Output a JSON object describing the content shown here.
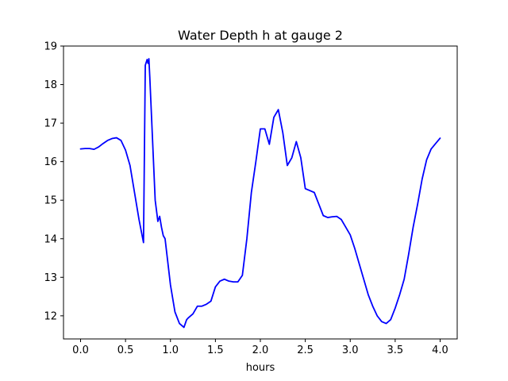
{
  "chart_data": {
    "type": "line",
    "title": "Water Depth h at gauge 2",
    "xlabel": "hours",
    "ylabel": "",
    "xlim": [
      -0.19,
      4.19
    ],
    "ylim": [
      11.4,
      19.0
    ],
    "xticks": [
      0.0,
      0.5,
      1.0,
      1.5,
      2.0,
      2.5,
      3.0,
      3.5,
      4.0
    ],
    "xtick_labels": [
      "0.0",
      "0.5",
      "1.0",
      "1.5",
      "2.0",
      "2.5",
      "3.0",
      "3.5",
      "4.0"
    ],
    "yticks": [
      12,
      13,
      14,
      15,
      16,
      17,
      18,
      19
    ],
    "ytick_labels": [
      "12",
      "13",
      "14",
      "15",
      "16",
      "17",
      "18",
      "19"
    ],
    "grid": false,
    "series": [
      {
        "color": "#0000ff",
        "x": [
          0.0,
          0.05,
          0.1,
          0.15,
          0.2,
          0.25,
          0.3,
          0.35,
          0.4,
          0.45,
          0.5,
          0.55,
          0.6,
          0.65,
          0.7,
          0.71,
          0.72,
          0.74,
          0.75,
          0.76,
          0.77,
          0.8,
          0.83,
          0.86,
          0.88,
          0.9,
          0.92,
          0.94,
          0.97,
          1.0,
          1.05,
          1.1,
          1.15,
          1.18,
          1.2,
          1.25,
          1.3,
          1.35,
          1.4,
          1.45,
          1.5,
          1.55,
          1.6,
          1.65,
          1.7,
          1.75,
          1.8,
          1.85,
          1.9,
          1.95,
          2.0,
          2.05,
          2.1,
          2.15,
          2.2,
          2.25,
          2.3,
          2.35,
          2.4,
          2.45,
          2.5,
          2.55,
          2.6,
          2.65,
          2.7,
          2.75,
          2.8,
          2.85,
          2.9,
          2.95,
          3.0,
          3.05,
          3.1,
          3.15,
          3.2,
          3.25,
          3.3,
          3.35,
          3.4,
          3.45,
          3.5,
          3.55,
          3.6,
          3.65,
          3.7,
          3.75,
          3.8,
          3.85,
          3.9,
          3.95,
          4.0
        ],
        "y": [
          16.33,
          16.34,
          16.34,
          16.32,
          16.38,
          16.47,
          16.55,
          16.6,
          16.62,
          16.55,
          16.3,
          15.9,
          15.2,
          14.5,
          13.9,
          16.2,
          18.5,
          18.65,
          18.55,
          18.67,
          18.2,
          16.6,
          15.0,
          14.45,
          14.58,
          14.3,
          14.08,
          14.0,
          13.4,
          12.8,
          12.1,
          11.8,
          11.7,
          11.9,
          11.95,
          12.05,
          12.25,
          12.25,
          12.3,
          12.38,
          12.75,
          12.9,
          12.95,
          12.9,
          12.88,
          12.88,
          13.05,
          14.0,
          15.2,
          16.0,
          16.85,
          16.85,
          16.45,
          17.15,
          17.35,
          16.75,
          15.9,
          16.1,
          16.52,
          16.1,
          15.3,
          15.25,
          15.2,
          14.9,
          14.6,
          14.55,
          14.57,
          14.58,
          14.5,
          14.3,
          14.1,
          13.75,
          13.35,
          12.95,
          12.55,
          12.25,
          12.0,
          11.85,
          11.8,
          11.9,
          12.2,
          12.55,
          12.95,
          13.6,
          14.3,
          14.9,
          15.55,
          16.05,
          16.33,
          16.47,
          16.61
        ]
      }
    ]
  }
}
